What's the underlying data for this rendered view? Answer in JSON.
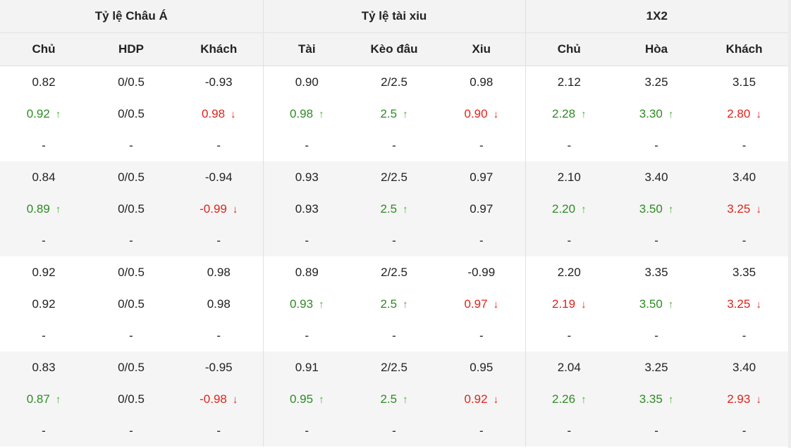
{
  "groups": [
    "Tỷ lệ Châu Á",
    "Tỷ lệ tài xiu",
    "1X2"
  ],
  "columns": [
    "Chủ",
    "HDP",
    "Khách",
    "Tài",
    "Kèo đâu",
    "Xiu",
    "Chủ",
    "Hòa",
    "Khách"
  ],
  "blocks": [
    {
      "rows": [
        [
          {
            "v": "0.82"
          },
          {
            "v": "0/0.5"
          },
          {
            "v": "-0.93"
          },
          {
            "v": "0.90"
          },
          {
            "v": "2/2.5"
          },
          {
            "v": "0.98"
          },
          {
            "v": "2.12"
          },
          {
            "v": "3.25"
          },
          {
            "v": "3.15"
          }
        ],
        [
          {
            "v": "0.92",
            "d": "up"
          },
          {
            "v": "0/0.5"
          },
          {
            "v": "0.98",
            "d": "down"
          },
          {
            "v": "0.98",
            "d": "up"
          },
          {
            "v": "2.5",
            "d": "up"
          },
          {
            "v": "0.90",
            "d": "down"
          },
          {
            "v": "2.28",
            "d": "up"
          },
          {
            "v": "3.30",
            "d": "up"
          },
          {
            "v": "2.80",
            "d": "down"
          }
        ],
        [
          {
            "v": "-"
          },
          {
            "v": "-"
          },
          {
            "v": "-"
          },
          {
            "v": "-"
          },
          {
            "v": "-"
          },
          {
            "v": "-"
          },
          {
            "v": "-"
          },
          {
            "v": "-"
          },
          {
            "v": "-"
          }
        ]
      ]
    },
    {
      "rows": [
        [
          {
            "v": "0.84"
          },
          {
            "v": "0/0.5"
          },
          {
            "v": "-0.94"
          },
          {
            "v": "0.93"
          },
          {
            "v": "2/2.5"
          },
          {
            "v": "0.97"
          },
          {
            "v": "2.10"
          },
          {
            "v": "3.40"
          },
          {
            "v": "3.40"
          }
        ],
        [
          {
            "v": "0.89",
            "d": "up"
          },
          {
            "v": "0/0.5"
          },
          {
            "v": "-0.99",
            "d": "down"
          },
          {
            "v": "0.93"
          },
          {
            "v": "2.5",
            "d": "up"
          },
          {
            "v": "0.97"
          },
          {
            "v": "2.20",
            "d": "up"
          },
          {
            "v": "3.50",
            "d": "up"
          },
          {
            "v": "3.25",
            "d": "down"
          }
        ],
        [
          {
            "v": "-"
          },
          {
            "v": "-"
          },
          {
            "v": "-"
          },
          {
            "v": "-"
          },
          {
            "v": "-"
          },
          {
            "v": "-"
          },
          {
            "v": "-"
          },
          {
            "v": "-"
          },
          {
            "v": "-"
          }
        ]
      ]
    },
    {
      "rows": [
        [
          {
            "v": "0.92"
          },
          {
            "v": "0/0.5"
          },
          {
            "v": "0.98"
          },
          {
            "v": "0.89"
          },
          {
            "v": "2/2.5"
          },
          {
            "v": "-0.99"
          },
          {
            "v": "2.20"
          },
          {
            "v": "3.35"
          },
          {
            "v": "3.35"
          }
        ],
        [
          {
            "v": "0.92"
          },
          {
            "v": "0/0.5"
          },
          {
            "v": "0.98"
          },
          {
            "v": "0.93",
            "d": "up"
          },
          {
            "v": "2.5",
            "d": "up"
          },
          {
            "v": "0.97",
            "d": "down"
          },
          {
            "v": "2.19",
            "d": "down"
          },
          {
            "v": "3.50",
            "d": "up"
          },
          {
            "v": "3.25",
            "d": "down"
          }
        ],
        [
          {
            "v": "-"
          },
          {
            "v": "-"
          },
          {
            "v": "-"
          },
          {
            "v": "-"
          },
          {
            "v": "-"
          },
          {
            "v": "-"
          },
          {
            "v": "-"
          },
          {
            "v": "-"
          },
          {
            "v": "-"
          }
        ]
      ]
    },
    {
      "rows": [
        [
          {
            "v": "0.83"
          },
          {
            "v": "0/0.5"
          },
          {
            "v": "-0.95"
          },
          {
            "v": "0.91"
          },
          {
            "v": "2/2.5"
          },
          {
            "v": "0.95"
          },
          {
            "v": "2.04"
          },
          {
            "v": "3.25"
          },
          {
            "v": "3.40"
          }
        ],
        [
          {
            "v": "0.87",
            "d": "up"
          },
          {
            "v": "0/0.5"
          },
          {
            "v": "-0.98",
            "d": "down"
          },
          {
            "v": "0.95",
            "d": "up"
          },
          {
            "v": "2.5",
            "d": "up"
          },
          {
            "v": "0.92",
            "d": "down"
          },
          {
            "v": "2.26",
            "d": "up"
          },
          {
            "v": "3.35",
            "d": "up"
          },
          {
            "v": "2.93",
            "d": "down"
          }
        ],
        [
          {
            "v": "-"
          },
          {
            "v": "-"
          },
          {
            "v": "-"
          },
          {
            "v": "-"
          },
          {
            "v": "-"
          },
          {
            "v": "-"
          },
          {
            "v": "-"
          },
          {
            "v": "-"
          },
          {
            "v": "-"
          }
        ]
      ]
    }
  ],
  "colors": {
    "up_text": "#2e8b24",
    "up_arrow": "#4caf3a",
    "down": "#e0231b",
    "text": "#222222",
    "header_bg": "#f3f3f3",
    "shade_bg": "#f5f5f5"
  },
  "icons": {
    "up": "arrow-up-icon",
    "down": "arrow-down-icon"
  }
}
